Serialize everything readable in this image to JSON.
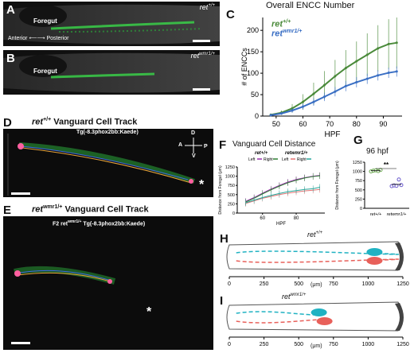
{
  "panels": {
    "A": {
      "letter": "A",
      "label": "Foregut",
      "genotype": "ret",
      "genotype_sup": "+/+",
      "axis_left": "Anterior",
      "axis_right": "Posterior"
    },
    "B": {
      "letter": "B",
      "label": "Foregut",
      "genotype": "ret",
      "genotype_sup": "wmr1/+"
    },
    "C": {
      "letter": "C",
      "title": "Overall ENCC Number",
      "legend_ret_wt": "ret",
      "legend_ret_wt_sup": "+/+",
      "legend_ret_mut": "ret",
      "legend_ret_mut_sup": "wmr1/+"
    },
    "D": {
      "letter": "D",
      "title_gene": "ret",
      "title_sup": "+/+",
      "title_rest": " Vanguard Cell Track",
      "transgene": "Tg(-8.3phox2bb:Kaede)",
      "compass": [
        "D",
        "A",
        "P",
        "V"
      ],
      "asterisk": "*"
    },
    "E": {
      "letter": "E",
      "title_gene": "ret",
      "title_sup": "wmr1/+",
      "title_rest": " Vanguard Cell Track",
      "transgene": "F2 ret",
      "transgene_sup": "wmr1/+",
      "transgene_rest": " Tg(-8.3phox2bb:Kaede)",
      "asterisk": "*"
    },
    "F": {
      "letter": "F",
      "title": "Vanguard Cell Distance",
      "legend_wt": "ret",
      "legend_wt_sup": "+/+",
      "legend_mut": "ret",
      "legend_mut_sup": "wmr1/+",
      "left": "Left",
      "right": "Right"
    },
    "G": {
      "letter": "G",
      "title": "96 hpf",
      "significance": "**",
      "ylabel": "Distance from Foregut (μm)",
      "xticks": [
        "ret+/+",
        "retwmr1/+"
      ]
    },
    "H": {
      "letter": "H",
      "genotype": "ret",
      "genotype_sup": "+/+",
      "unit": "(μm)"
    },
    "I": {
      "letter": "I",
      "genotype": "ret",
      "genotype_sup": "wmr1/+",
      "unit": "(μm)"
    }
  },
  "chart_data": [
    {
      "panel": "C",
      "type": "line",
      "title": "Overall ENCC Number",
      "xlabel": "HPF",
      "ylabel": "# of ENCCs",
      "xlim": [
        45,
        97
      ],
      "ylim": [
        0,
        230
      ],
      "xticks": [
        50,
        60,
        70,
        80,
        90
      ],
      "yticks": [
        0,
        50,
        100,
        150,
        200
      ],
      "series": [
        {
          "name": "ret+/+",
          "color": "#4a8a3a",
          "x": [
            48,
            52,
            56,
            60,
            64,
            68,
            72,
            76,
            80,
            84,
            88,
            92,
            95
          ],
          "y": [
            3,
            8,
            18,
            33,
            52,
            72,
            93,
            112,
            128,
            143,
            158,
            168,
            171
          ],
          "err": [
            3,
            5,
            10,
            18,
            26,
            33,
            38,
            42,
            46,
            50,
            54,
            58,
            60
          ]
        },
        {
          "name": "retwmr1/+",
          "color": "#3a6fc4",
          "x": [
            48,
            52,
            56,
            60,
            64,
            68,
            72,
            76,
            80,
            84,
            88,
            92,
            95
          ],
          "y": [
            2,
            6,
            13,
            22,
            33,
            45,
            57,
            70,
            79,
            87,
            95,
            101,
            104
          ],
          "err": [
            2,
            3,
            5,
            7,
            9,
            10,
            11,
            12,
            12,
            12,
            12,
            12,
            12
          ]
        }
      ]
    },
    {
      "panel": "F",
      "type": "line",
      "title": "Vanguard Cell Distance",
      "xlabel": "HPF",
      "ylabel": "Distance from Foregut (μm)",
      "xlim": [
        45,
        97
      ],
      "ylim": [
        0,
        1250
      ],
      "xticks": [
        60,
        80
      ],
      "yticks": [
        0,
        250,
        500,
        750,
        1000,
        1250
      ],
      "series": [
        {
          "name": "ret+/+ Left",
          "color": "#9b2fae",
          "x": [
            50,
            55,
            60,
            65,
            70,
            75,
            80,
            85,
            90,
            94
          ],
          "y": [
            320,
            420,
            540,
            650,
            750,
            840,
            910,
            960,
            1000,
            1020
          ]
        },
        {
          "name": "ret+/+ Right",
          "color": "#2e7d32",
          "x": [
            50,
            55,
            60,
            65,
            70,
            75,
            80,
            85,
            90,
            94
          ],
          "y": [
            300,
            400,
            520,
            630,
            730,
            820,
            890,
            950,
            990,
            1010
          ]
        },
        {
          "name": "retwmr1/+ Left",
          "color": "#e57373",
          "x": [
            50,
            55,
            60,
            65,
            70,
            75,
            80,
            85,
            90,
            94
          ],
          "y": [
            260,
            330,
            400,
            450,
            500,
            540,
            570,
            600,
            620,
            640
          ]
        },
        {
          "name": "retwmr1/+ Right",
          "color": "#26a69a",
          "x": [
            50,
            55,
            60,
            65,
            70,
            75,
            80,
            85,
            90,
            94
          ],
          "y": [
            280,
            350,
            420,
            480,
            530,
            580,
            610,
            640,
            660,
            700
          ]
        }
      ]
    },
    {
      "panel": "G",
      "type": "scatter",
      "title": "96 hpf",
      "ylabel": "Distance from Foregut (μm)",
      "categories": [
        "ret+/+",
        "retwmr1/+"
      ],
      "ylim": [
        0,
        1250
      ],
      "yticks": [
        0,
        250,
        500,
        750,
        1000,
        1250
      ],
      "series": [
        {
          "name": "ret+/+",
          "color": "#6aa84f",
          "values": [
            1000,
            1020,
            1030,
            1010,
            1040
          ]
        },
        {
          "name": "retwmr1/+",
          "color": "#6a5acd",
          "values": [
            600,
            620,
            610,
            780,
            630
          ]
        }
      ]
    },
    {
      "panel": "H",
      "type": "diagram",
      "xticks": [
        0,
        250,
        500,
        750,
        1000,
        1250
      ],
      "unit": "(μm)"
    },
    {
      "panel": "I",
      "type": "diagram",
      "xticks": [
        0,
        250,
        500,
        750,
        1000,
        1250
      ],
      "unit": "(μm)"
    }
  ]
}
